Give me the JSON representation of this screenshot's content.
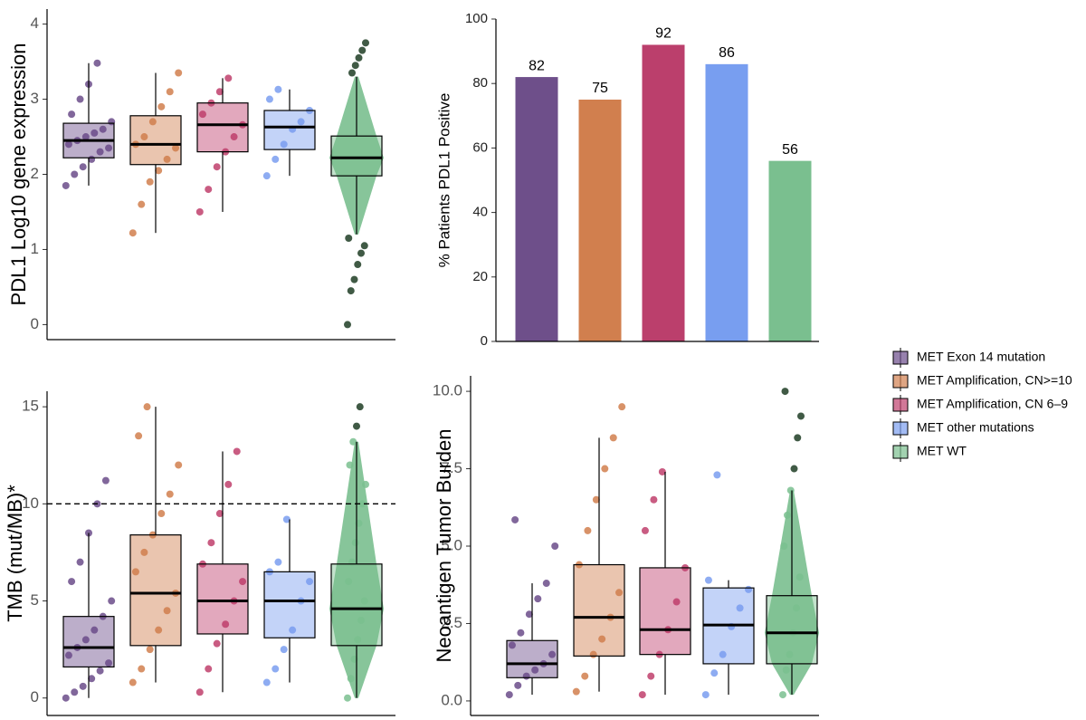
{
  "legend": {
    "entries": [
      {
        "name": "MET Exon 14 mutation",
        "color": "#6b4c8a"
      },
      {
        "name": "MET Amplification, CN>=10",
        "color": "#d17f4e"
      },
      {
        "name": "MET Amplification, CN 6–9",
        "color": "#bf3f6c"
      },
      {
        "name": "MET other mutations",
        "color": "#7a9ef0"
      },
      {
        "name": "MET WT",
        "color": "#7abf8f"
      }
    ]
  },
  "chart_data": [
    {
      "type": "box",
      "ylabel": "PDL1 Log10 gene expression",
      "ylim": [
        -0.2,
        4.2
      ],
      "yticks": [
        0,
        1,
        2,
        3,
        4
      ],
      "series": [
        {
          "color": "#6b4c8a",
          "whisker_low": 1.85,
          "q1": 2.22,
          "median": 2.45,
          "q3": 2.68,
          "whisker_high": 3.48,
          "points": [
            1.85,
            2.0,
            2.1,
            2.2,
            2.3,
            2.35,
            2.4,
            2.45,
            2.5,
            2.55,
            2.6,
            2.7,
            2.8,
            3.0,
            3.2,
            3.48
          ]
        },
        {
          "color": "#d17f4e",
          "whisker_low": 1.22,
          "q1": 2.13,
          "median": 2.4,
          "q3": 2.78,
          "whisker_high": 3.35,
          "points": [
            1.22,
            1.6,
            1.9,
            2.05,
            2.2,
            2.35,
            2.4,
            2.5,
            2.7,
            2.9,
            3.1,
            3.35
          ]
        },
        {
          "color": "#bf3f6c",
          "whisker_low": 1.5,
          "q1": 2.3,
          "median": 2.66,
          "q3": 2.95,
          "whisker_high": 3.28,
          "points": [
            1.5,
            1.8,
            2.1,
            2.3,
            2.5,
            2.66,
            2.8,
            2.95,
            3.1,
            3.28
          ]
        },
        {
          "color": "#7a9ef0",
          "whisker_low": 1.98,
          "q1": 2.33,
          "median": 2.63,
          "q3": 2.85,
          "whisker_high": 3.13,
          "points": [
            1.98,
            2.2,
            2.4,
            2.6,
            2.7,
            2.85,
            3.0,
            3.13
          ]
        },
        {
          "color": "#7abf8f",
          "violin": true,
          "whisker_low": 1.2,
          "q1": 1.98,
          "median": 2.22,
          "q3": 2.51,
          "whisker_high": 3.3,
          "points": [
            0,
            0.45,
            0.6,
            0.8,
            0.95,
            1.05,
            1.15,
            3.35,
            3.45,
            3.55,
            3.65,
            3.75
          ]
        }
      ]
    },
    {
      "type": "bar",
      "ylabel": "% Patients PDL1 Positive",
      "ylim": [
        0,
        100
      ],
      "yticks": [
        0,
        20,
        40,
        60,
        80,
        100
      ],
      "values": [
        82,
        75,
        92,
        86,
        56
      ],
      "colors": [
        "#6e4f8a",
        "#d17f4e",
        "#bb3f6c",
        "#789ef0",
        "#7abf8f"
      ]
    },
    {
      "type": "box",
      "ylabel": "TMB (mut/MB)*",
      "ylim": [
        -0.9,
        15.8
      ],
      "yticks": [
        0,
        5,
        10,
        15
      ],
      "hline": 10,
      "series": [
        {
          "color": "#6b4c8a",
          "whisker_low": 0,
          "q1": 1.6,
          "median": 2.6,
          "q3": 4.2,
          "whisker_high": 8.5,
          "points": [
            0,
            0.3,
            0.6,
            1,
            1.4,
            1.8,
            2.2,
            2.6,
            3,
            3.5,
            4.2,
            5,
            6,
            7,
            8.5,
            10,
            11.2
          ]
        },
        {
          "color": "#d17f4e",
          "whisker_low": 0.8,
          "q1": 2.7,
          "median": 5.4,
          "q3": 8.4,
          "whisker_high": 15,
          "points": [
            0.8,
            1.5,
            2.5,
            3.5,
            4.5,
            5.4,
            6.5,
            7.5,
            8.4,
            9.5,
            10.5,
            12,
            13.5,
            15
          ]
        },
        {
          "color": "#bf3f6c",
          "whisker_low": 0.3,
          "q1": 3.3,
          "median": 5.0,
          "q3": 6.9,
          "whisker_high": 12.7,
          "points": [
            0.3,
            1.5,
            2.8,
            3.8,
            5,
            6,
            6.9,
            8,
            9.5,
            11,
            12.7
          ]
        },
        {
          "color": "#7a9ef0",
          "whisker_low": 0.8,
          "q1": 3.1,
          "median": 5.0,
          "q3": 6.5,
          "whisker_high": 9.2,
          "points": [
            0.8,
            1.5,
            2.5,
            3.5,
            5,
            6,
            6.5,
            7,
            9.2
          ]
        },
        {
          "color": "#7abf8f",
          "violin": true,
          "whisker_low": 0,
          "q1": 2.7,
          "median": 4.6,
          "q3": 6.9,
          "whisker_high": 13.2,
          "points": [
            0,
            1,
            2,
            3,
            4,
            5,
            6,
            7,
            8,
            9,
            10,
            11,
            12,
            13.2,
            14,
            15
          ]
        }
      ]
    },
    {
      "type": "box",
      "ylabel": "Neoantigen Tumor Burden",
      "ylim": [
        -0.47,
        10.5
      ],
      "yticks": [
        {
          "value": 0,
          "label": "0.0"
        },
        {
          "value": 2.5,
          "label": "2.5"
        },
        {
          "value": 5,
          "label": "5.0"
        },
        {
          "value": 7.5,
          "label": "7.5"
        },
        {
          "value": 10,
          "label": "10.0"
        }
      ],
      "series": [
        {
          "color": "#6b4c8a",
          "whisker_low": 0.2,
          "q1": 0.75,
          "median": 1.2,
          "q3": 1.95,
          "whisker_high": 3.8,
          "points": [
            0.2,
            0.5,
            0.8,
            1,
            1.2,
            1.5,
            1.8,
            2.2,
            2.8,
            3.3,
            3.8,
            5,
            5.85
          ]
        },
        {
          "color": "#d17f4e",
          "whisker_low": 0.3,
          "q1": 1.45,
          "median": 2.7,
          "q3": 4.4,
          "whisker_high": 8.5,
          "points": [
            0.3,
            0.8,
            1.5,
            2,
            2.7,
            3.5,
            4.4,
            5.5,
            6.5,
            7.5,
            8.5,
            9.5
          ]
        },
        {
          "color": "#bf3f6c",
          "whisker_low": 0.2,
          "q1": 1.5,
          "median": 2.3,
          "q3": 4.3,
          "whisker_high": 7.4,
          "points": [
            0.2,
            0.8,
            1.5,
            2.3,
            3.2,
            4.3,
            5.5,
            6.5,
            7.4
          ]
        },
        {
          "color": "#7a9ef0",
          "whisker_low": 0.2,
          "q1": 1.2,
          "median": 2.45,
          "q3": 3.65,
          "whisker_high": 3.9,
          "points": [
            0.2,
            0.9,
            1.5,
            2.4,
            3,
            3.6,
            3.9,
            7.3
          ]
        },
        {
          "color": "#7abf8f",
          "violin": true,
          "whisker_low": 0.2,
          "q1": 1.2,
          "median": 2.2,
          "q3": 3.4,
          "whisker_high": 6.8,
          "points": [
            0.2,
            1,
            1.5,
            2.2,
            3,
            4,
            5,
            6,
            6.8,
            7.5,
            8.5,
            9.2,
            10
          ]
        }
      ]
    }
  ]
}
